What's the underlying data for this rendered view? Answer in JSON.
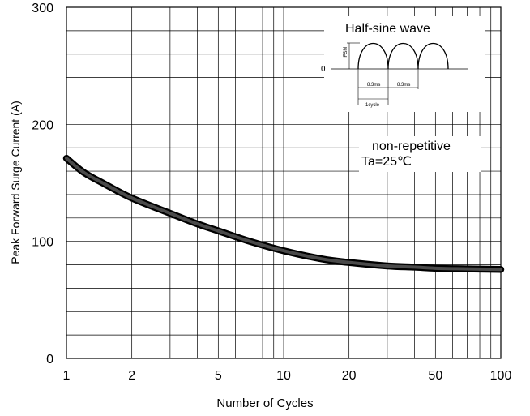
{
  "chart_data": {
    "type": "line",
    "x_scale": "log",
    "xlim": [
      1,
      100
    ],
    "ylim": [
      0,
      300
    ],
    "xlabel": "Number of Cycles",
    "ylabel": "Peak Forward Surge Current (A)",
    "x_ticks": [
      "1",
      "2",
      "5",
      "10",
      "20",
      "50",
      "100"
    ],
    "y_ticks": [
      "0",
      "100",
      "200",
      "300"
    ],
    "grid": true,
    "series": [
      {
        "x": [
          1,
          1.2,
          1.5,
          2,
          3,
          4,
          5,
          7,
          10,
          15,
          20,
          30,
          40,
          50,
          70,
          100
        ],
        "values": [
          171,
          159,
          149,
          137,
          124,
          115,
          109,
          100,
          92,
          85,
          82,
          79,
          78,
          77,
          76.5,
          76
        ]
      }
    ],
    "annotations": {
      "conditions_line1": "non-repetitive",
      "conditions_line2": "Ta=25℃"
    },
    "inset": {
      "title": "Half-sine wave",
      "zero_label": "0",
      "ifsm_label": "IFSM",
      "period1_label": "8.3ms",
      "period2_label": "8.3ms",
      "cycle_label": "1cycle"
    }
  }
}
